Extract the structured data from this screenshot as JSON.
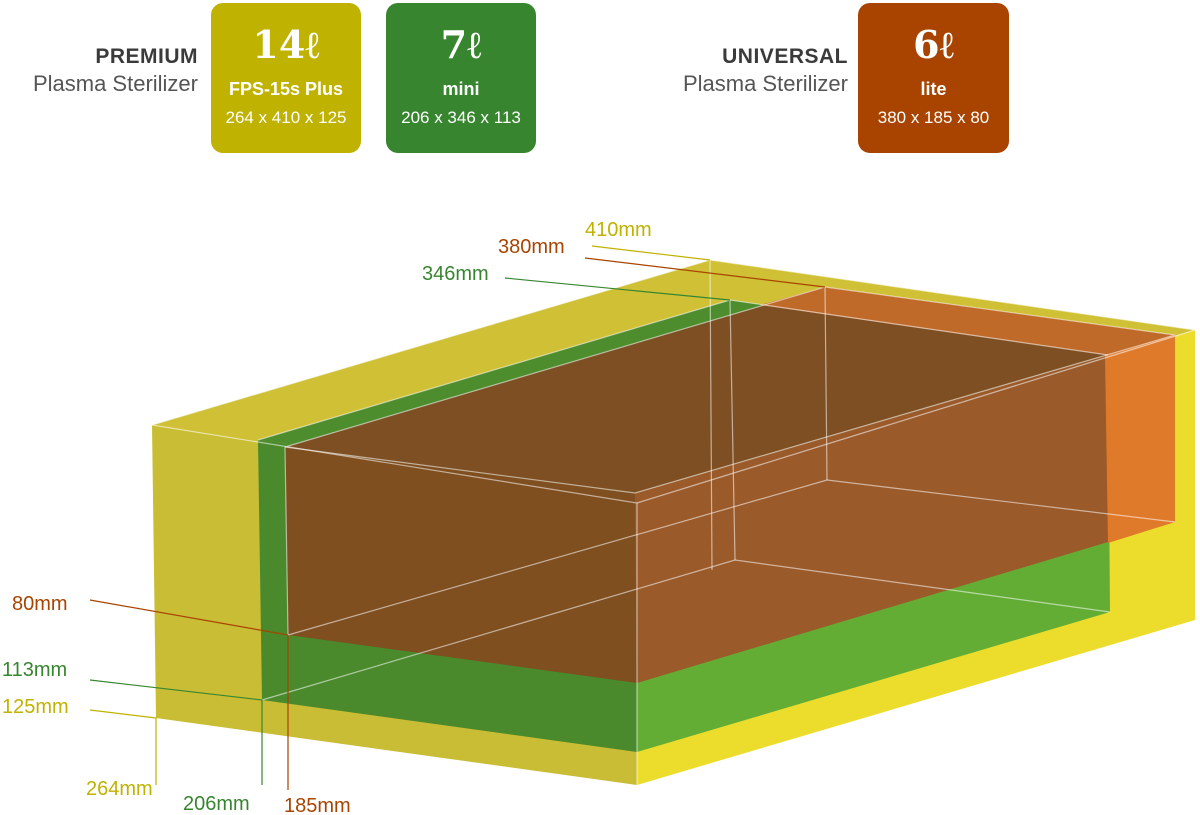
{
  "premium": {
    "title": "PREMIUM",
    "subtitle": "Plasma Sterilizer"
  },
  "universal": {
    "title": "UNIVERSAL",
    "subtitle": "Plasma Sterilizer"
  },
  "cards": [
    {
      "volume": "14ℓ",
      "model": "FPS-15s Plus",
      "dims": "264 x 410 x 125",
      "color": "#c0b200"
    },
    {
      "volume": "7ℓ",
      "model": "mini",
      "dims": "206 x 346 x 113",
      "color": "#37862f"
    },
    {
      "volume": "6ℓ",
      "model": "lite",
      "dims": "380 x 185 x 80",
      "color": "#a84400"
    }
  ],
  "dimensions": {
    "d410": "410mm",
    "d380": "380mm",
    "d346": "346mm",
    "d80": "80mm",
    "d113": "113mm",
    "d125": "125mm",
    "d264": "264mm",
    "d206": "206mm",
    "d185": "185mm"
  },
  "colors": {
    "yellow": "#c0b200",
    "green": "#37862f",
    "orange": "#a84400"
  }
}
